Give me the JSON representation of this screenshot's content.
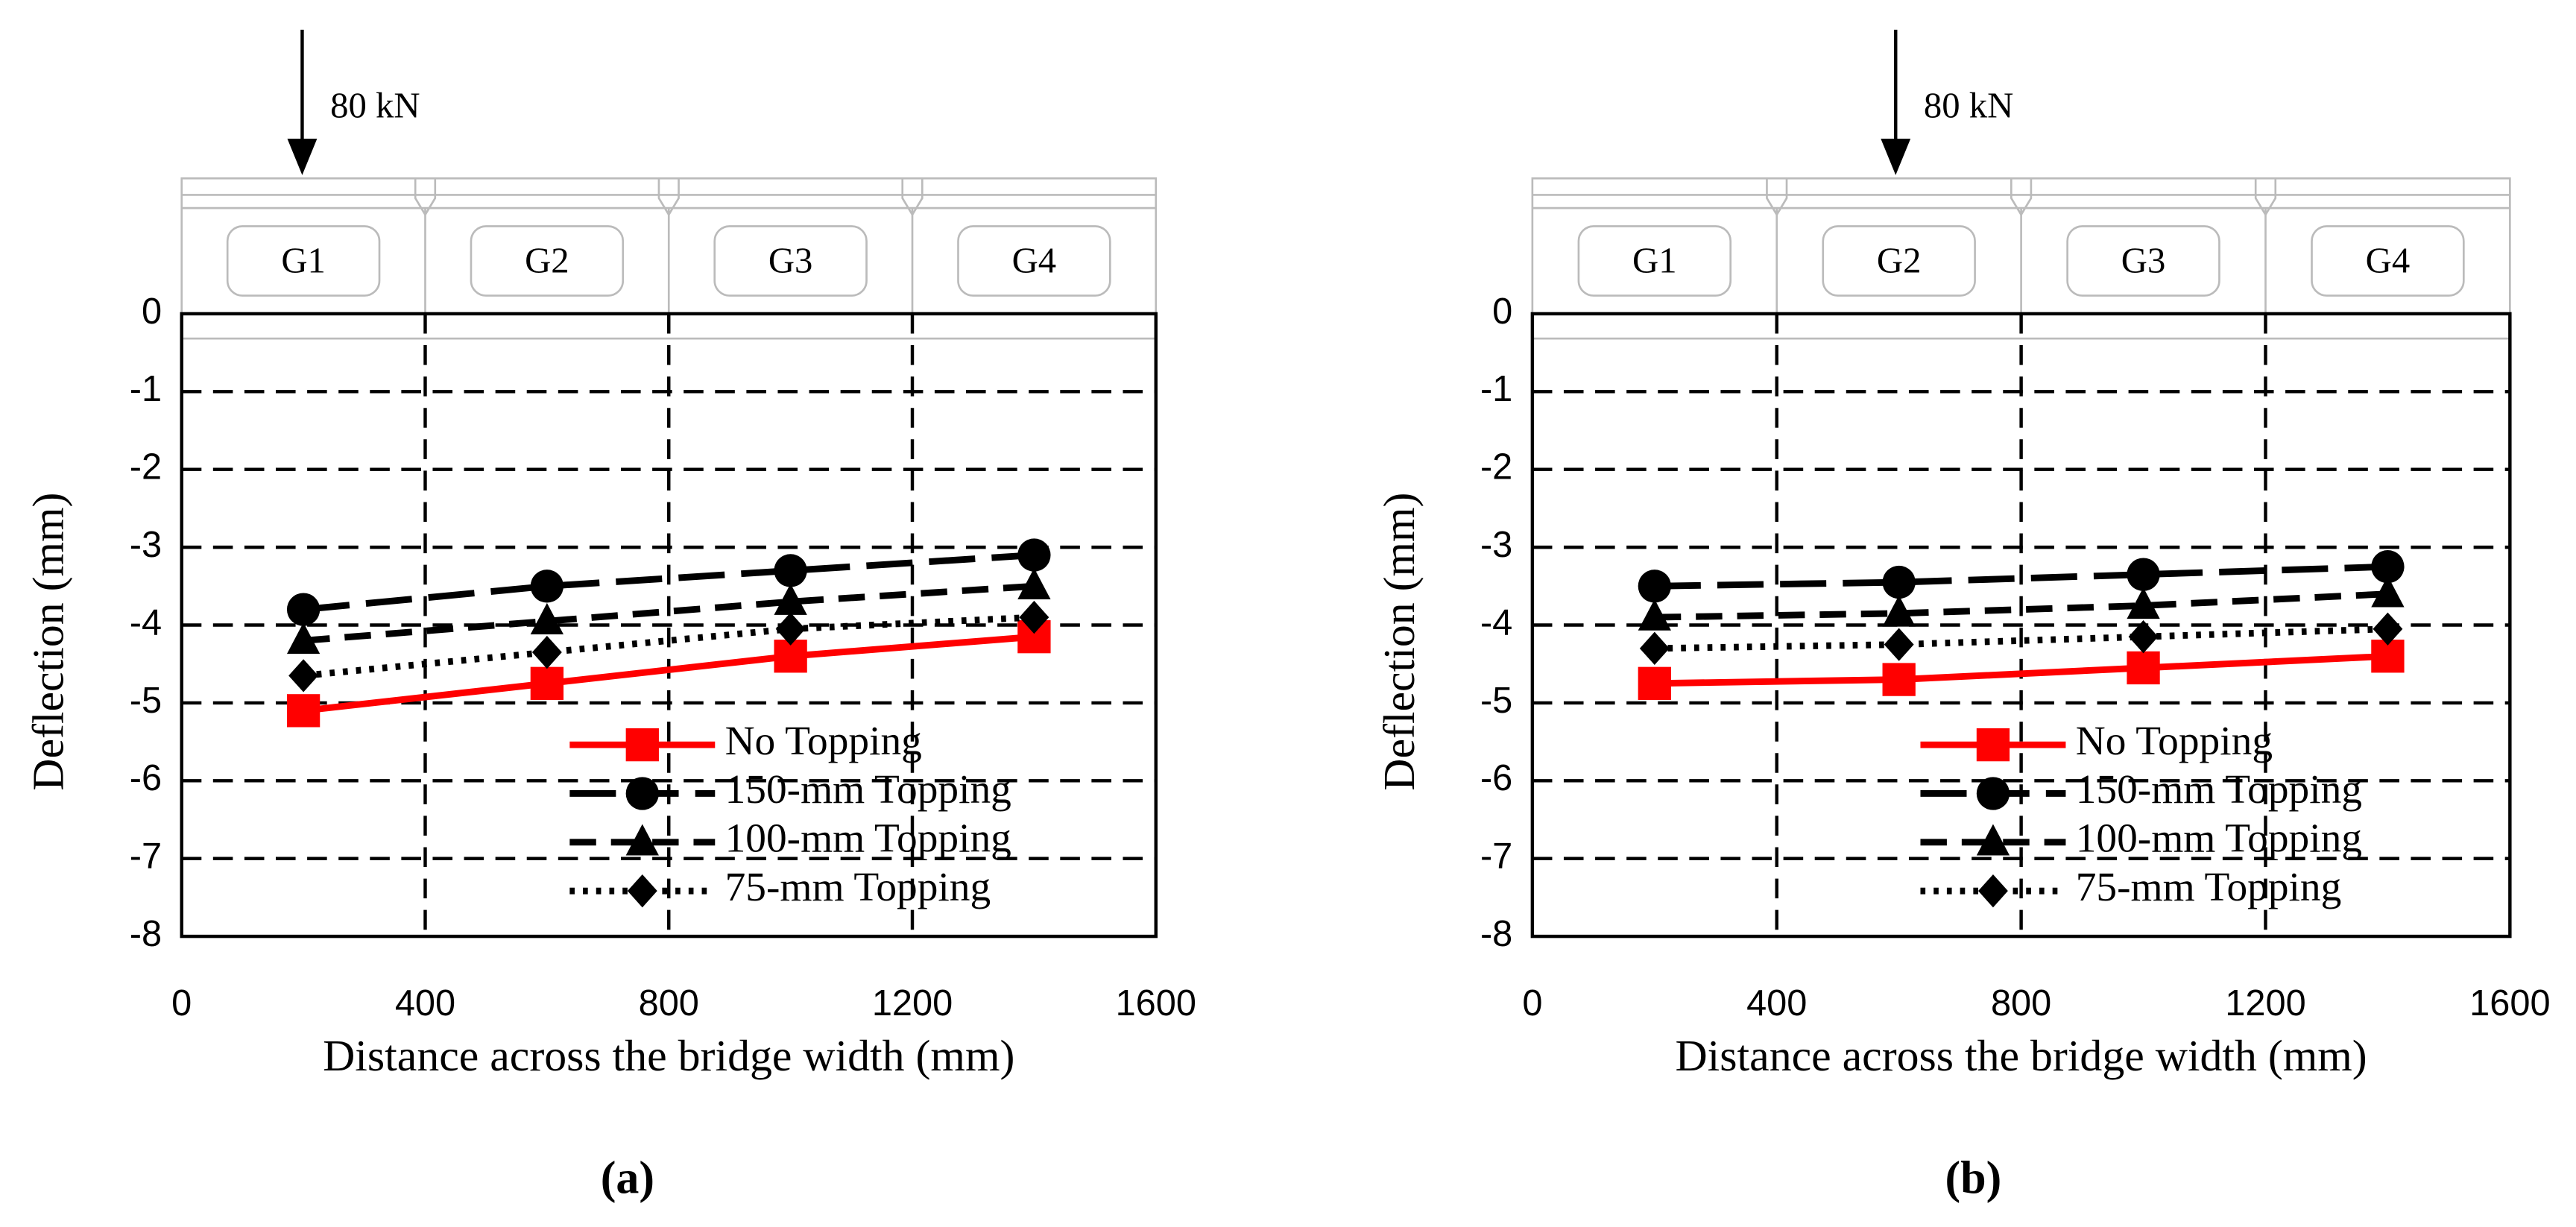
{
  "chart_data": [
    {
      "type": "line",
      "caption": "(a)",
      "annotation": "80 kN",
      "girders": [
        "G1",
        "G2",
        "G3",
        "G4"
      ],
      "x_label": "Distance across the bridge width (mm)",
      "y_label": "Deflection (mm)",
      "x": [
        200,
        600,
        1000,
        1400
      ],
      "xlim": [
        0,
        1600
      ],
      "xticks": [
        0,
        400,
        800,
        1200,
        1600
      ],
      "ylim": [
        -8,
        0
      ],
      "yticks": [
        0,
        -1,
        -2,
        -3,
        -4,
        -5,
        -6,
        -7,
        -8
      ],
      "grid": true,
      "legend": "lower-right",
      "series": [
        {
          "name": "No Topping",
          "color": "#ff0000",
          "dash": "solid",
          "marker": "square",
          "values": [
            -5.1,
            -4.75,
            -4.4,
            -4.15
          ]
        },
        {
          "name": "150-mm Topping",
          "color": "#000000",
          "dash": "long-dash",
          "marker": "circle",
          "values": [
            -3.8,
            -3.5,
            -3.3,
            -3.1
          ]
        },
        {
          "name": "100-mm Topping",
          "color": "#000000",
          "dash": "dash",
          "marker": "triangle",
          "values": [
            -4.2,
            -3.95,
            -3.7,
            -3.5
          ]
        },
        {
          "name": "75-mm Topping",
          "color": "#000000",
          "dash": "dot",
          "marker": "diamond",
          "values": [
            -4.65,
            -4.35,
            -4.05,
            -3.9
          ]
        }
      ]
    },
    {
      "type": "line",
      "caption": "(b)",
      "annotation": "80 kN",
      "girders": [
        "G1",
        "G2",
        "G3",
        "G4"
      ],
      "x_label": "Distance across the bridge width (mm)",
      "y_label": "Deflection (mm)",
      "x": [
        200,
        600,
        1000,
        1400
      ],
      "xlim": [
        0,
        1600
      ],
      "xticks": [
        0,
        400,
        800,
        1200,
        1600
      ],
      "ylim": [
        -8,
        0
      ],
      "yticks": [
        0,
        -1,
        -2,
        -3,
        -4,
        -5,
        -6,
        -7,
        -8
      ],
      "grid": true,
      "legend": "lower-right",
      "series": [
        {
          "name": "No Topping",
          "color": "#ff0000",
          "dash": "solid",
          "marker": "square",
          "values": [
            -4.75,
            -4.7,
            -4.55,
            -4.4
          ]
        },
        {
          "name": "150-mm Topping",
          "color": "#000000",
          "dash": "long-dash",
          "marker": "circle",
          "values": [
            -3.5,
            -3.45,
            -3.35,
            -3.25
          ]
        },
        {
          "name": "100-mm Topping",
          "color": "#000000",
          "dash": "dash",
          "marker": "triangle",
          "values": [
            -3.9,
            -3.85,
            -3.75,
            -3.6
          ]
        },
        {
          "name": "75-mm Topping",
          "color": "#000000",
          "dash": "dot",
          "marker": "diamond",
          "values": [
            -4.3,
            -4.25,
            -4.15,
            -4.05
          ]
        }
      ]
    }
  ]
}
